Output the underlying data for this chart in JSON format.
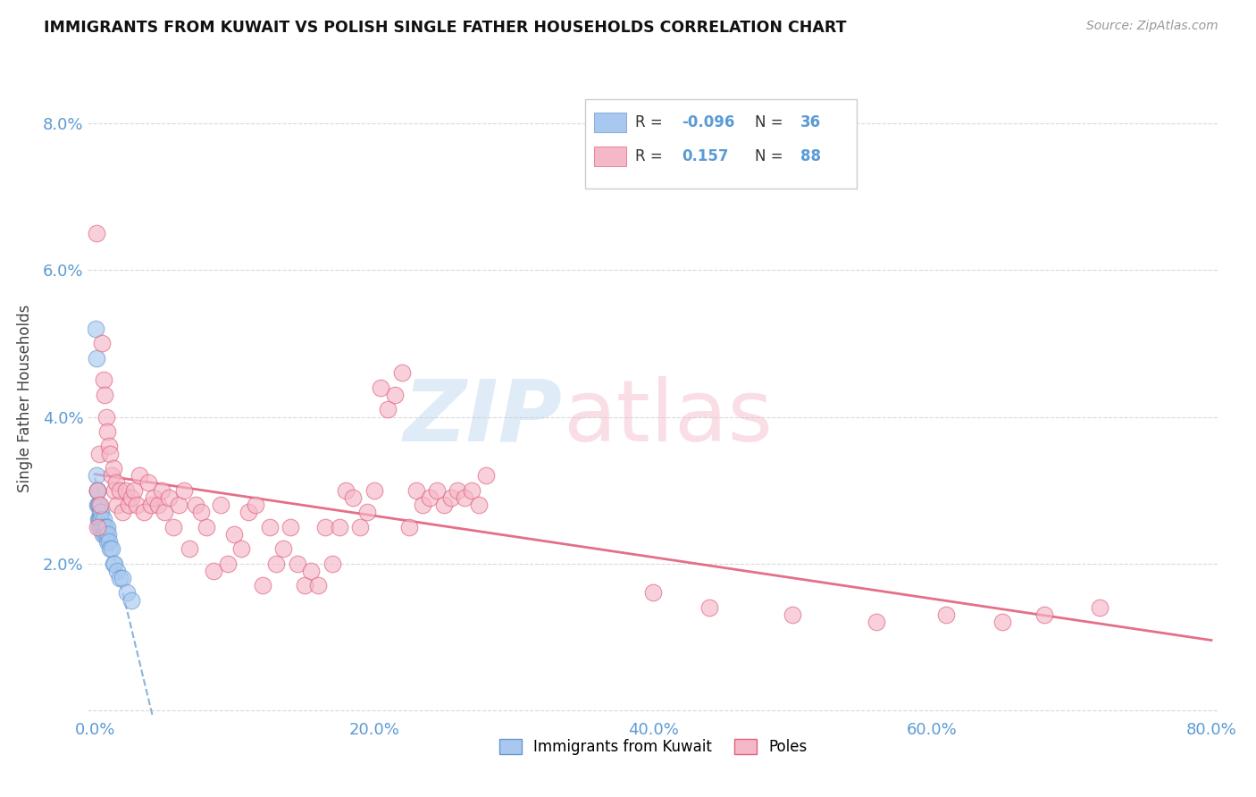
{
  "title": "IMMIGRANTS FROM KUWAIT VS POLISH SINGLE FATHER HOUSEHOLDS CORRELATION CHART",
  "source": "Source: ZipAtlas.com",
  "tick_color": "#5b9bd5",
  "ylabel": "Single Father Households",
  "xlim": [
    -0.5,
    80.5
  ],
  "ylim": [
    -0.1,
    8.6
  ],
  "xticks": [
    0,
    20,
    40,
    60,
    80
  ],
  "xtick_labels": [
    "0.0%",
    "20.0%",
    "40.0%",
    "60.0%",
    "80.0%"
  ],
  "yticks": [
    0,
    2,
    4,
    6,
    8
  ],
  "ytick_labels": [
    "",
    "2.0%",
    "4.0%",
    "6.0%",
    "8.0%"
  ],
  "background_color": "#ffffff",
  "grid_color": "#d0d0d0",
  "kuwait_color": "#a8c8f0",
  "kuwait_edge_color": "#6699cc",
  "poles_color": "#f5b8c8",
  "poles_edge_color": "#e0607a",
  "kuwait_R": -0.096,
  "kuwait_N": 36,
  "poles_R": 0.157,
  "poles_N": 88,
  "legend_label1": "Immigrants from Kuwait",
  "legend_label2": "Poles",
  "kuwait_scatter_x": [
    0.08,
    0.1,
    0.12,
    0.15,
    0.18,
    0.2,
    0.22,
    0.25,
    0.28,
    0.3,
    0.32,
    0.35,
    0.38,
    0.4,
    0.42,
    0.45,
    0.5,
    0.55,
    0.6,
    0.65,
    0.7,
    0.75,
    0.8,
    0.85,
    0.9,
    0.95,
    1.0,
    1.1,
    1.2,
    1.3,
    1.4,
    1.6,
    1.8,
    2.0,
    2.3,
    2.6
  ],
  "kuwait_scatter_y": [
    5.2,
    4.8,
    3.2,
    3.0,
    2.8,
    3.0,
    2.8,
    2.6,
    2.6,
    2.5,
    2.8,
    2.7,
    2.6,
    2.5,
    2.7,
    2.6,
    2.5,
    2.4,
    2.6,
    2.5,
    2.4,
    2.5,
    2.4,
    2.3,
    2.5,
    2.4,
    2.3,
    2.2,
    2.2,
    2.0,
    2.0,
    1.9,
    1.8,
    1.8,
    1.6,
    1.5
  ],
  "poles_scatter_x": [
    0.1,
    0.15,
    0.2,
    0.3,
    0.4,
    0.5,
    0.6,
    0.7,
    0.8,
    0.9,
    1.0,
    1.1,
    1.2,
    1.3,
    1.4,
    1.5,
    1.6,
    1.8,
    2.0,
    2.2,
    2.4,
    2.6,
    2.8,
    3.0,
    3.2,
    3.5,
    3.8,
    4.0,
    4.2,
    4.5,
    4.8,
    5.0,
    5.3,
    5.6,
    6.0,
    6.4,
    6.8,
    7.2,
    7.6,
    8.0,
    8.5,
    9.0,
    9.5,
    10.0,
    10.5,
    11.0,
    11.5,
    12.0,
    12.5,
    13.0,
    13.5,
    14.0,
    14.5,
    15.0,
    15.5,
    16.0,
    16.5,
    17.0,
    17.5,
    18.0,
    18.5,
    19.0,
    19.5,
    20.0,
    20.5,
    21.0,
    21.5,
    22.0,
    22.5,
    23.0,
    23.5,
    24.0,
    24.5,
    25.0,
    25.5,
    26.0,
    26.5,
    27.0,
    27.5,
    28.0,
    40.0,
    44.0,
    50.0,
    56.0,
    61.0,
    65.0,
    68.0,
    72.0
  ],
  "poles_scatter_y": [
    6.5,
    3.0,
    2.5,
    3.5,
    2.8,
    5.0,
    4.5,
    4.3,
    4.0,
    3.8,
    3.6,
    3.5,
    3.2,
    3.3,
    3.0,
    3.1,
    2.8,
    3.0,
    2.7,
    3.0,
    2.8,
    2.9,
    3.0,
    2.8,
    3.2,
    2.7,
    3.1,
    2.8,
    2.9,
    2.8,
    3.0,
    2.7,
    2.9,
    2.5,
    2.8,
    3.0,
    2.2,
    2.8,
    2.7,
    2.5,
    1.9,
    2.8,
    2.0,
    2.4,
    2.2,
    2.7,
    2.8,
    1.7,
    2.5,
    2.0,
    2.2,
    2.5,
    2.0,
    1.7,
    1.9,
    1.7,
    2.5,
    2.0,
    2.5,
    3.0,
    2.9,
    2.5,
    2.7,
    3.0,
    4.4,
    4.1,
    4.3,
    4.6,
    2.5,
    3.0,
    2.8,
    2.9,
    3.0,
    2.8,
    2.9,
    3.0,
    2.9,
    3.0,
    2.8,
    3.2,
    1.6,
    1.4,
    1.3,
    1.2,
    1.3,
    1.2,
    1.3,
    1.4
  ]
}
